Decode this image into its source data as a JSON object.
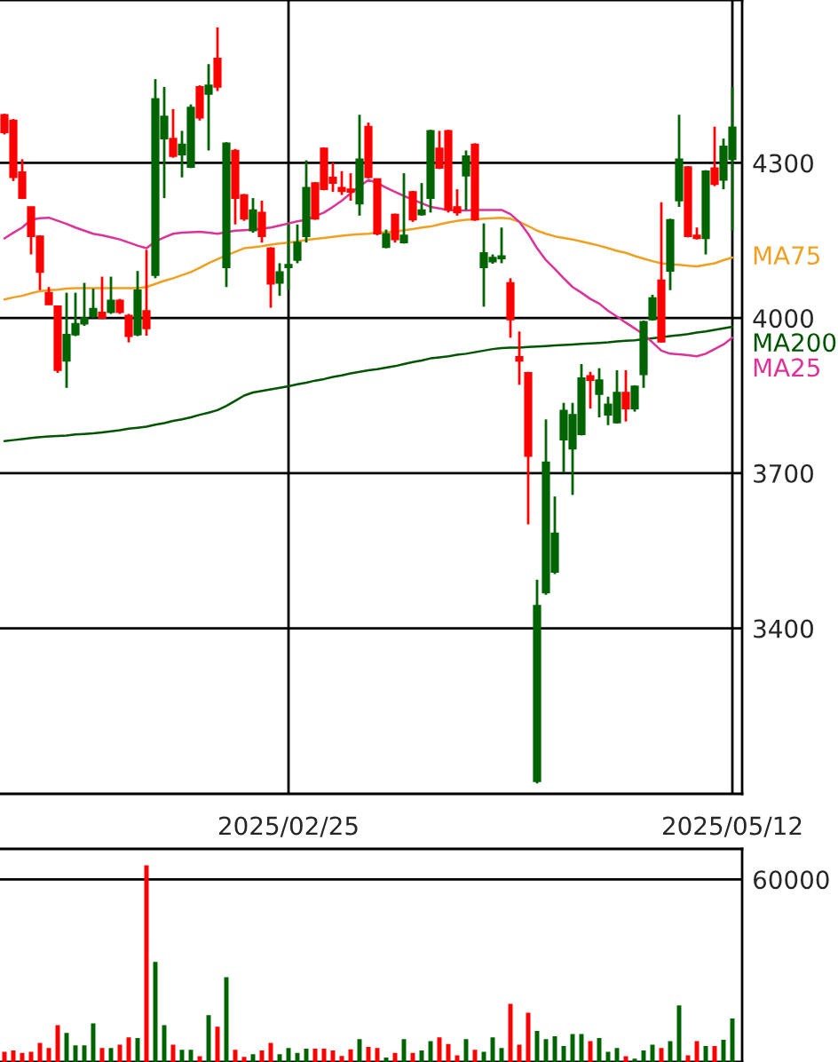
{
  "chart_data": [
    {
      "type": "candlestick",
      "categories": [
        null,
        null,
        null,
        null,
        null,
        null,
        null,
        null,
        null,
        null,
        null,
        null,
        null,
        null,
        null,
        null,
        null,
        null,
        null,
        null,
        null,
        null,
        null,
        null,
        null,
        null,
        null,
        null,
        null,
        null,
        null,
        null,
        "2025/02/25",
        null,
        null,
        null,
        null,
        null,
        null,
        null,
        null,
        null,
        null,
        null,
        null,
        null,
        null,
        null,
        null,
        null,
        null,
        null,
        null,
        null,
        null,
        null,
        null,
        null,
        null,
        null,
        null,
        null,
        null,
        null,
        null,
        null,
        null,
        null,
        null,
        null,
        null,
        null,
        null,
        null,
        null,
        null,
        null,
        null,
        null,
        null,
        null,
        null,
        "2025/05/12"
      ],
      "ohlc": [
        [
          4359,
          4395,
          4355,
          4393
        ],
        [
          4272,
          4385,
          4265,
          4382
        ],
        [
          4232,
          4307,
          4230,
          4282
        ],
        [
          4158,
          4215,
          4123,
          4215
        ],
        [
          4089,
          4160,
          4054,
          4158
        ],
        [
          4026,
          4060,
          4026,
          4049
        ],
        [
          3899,
          4023,
          3894,
          4023
        ],
        [
          3968,
          4049,
          3865,
          3917
        ],
        [
          3989,
          4049,
          3965,
          3968
        ],
        [
          4000,
          4068,
          3985,
          3989
        ],
        [
          4018,
          4057,
          4000,
          4003
        ],
        [
          4000,
          4080,
          3998,
          4011
        ],
        [
          4034,
          4080,
          4008,
          4011
        ],
        [
          4011,
          4037,
          4008,
          4034
        ],
        [
          3965,
          4008,
          3953,
          4005
        ],
        [
          4054,
          4091,
          3965,
          3968
        ],
        [
          3980,
          4132,
          3966,
          4014
        ],
        [
          4424,
          4462,
          4077,
          4083
        ],
        [
          4390,
          4447,
          4232,
          4347
        ],
        [
          4313,
          4404,
          4310,
          4347
        ],
        [
          4336,
          4362,
          4272,
          4316
        ],
        [
          4407,
          4413,
          4290,
          4292
        ],
        [
          4387,
          4450,
          4382,
          4447
        ],
        [
          4450,
          4491,
          4324,
          4433
        ],
        [
          4447,
          4562,
          4439,
          4502
        ],
        [
          4338,
          4340,
          4060,
          4098
        ],
        [
          4232,
          4327,
          4181,
          4324
        ],
        [
          4192,
          4240,
          4188,
          4238
        ],
        [
          4209,
          4232,
          4165,
          4169
        ],
        [
          4158,
          4227,
          4146,
          4204
        ],
        [
          4066,
          4137,
          4020,
          4135
        ],
        [
          4089,
          4106,
          4043,
          4068
        ],
        [
          4103,
          4181,
          4054,
          4098
        ],
        [
          4146,
          4181,
          4106,
          4112
        ],
        [
          4252,
          4305,
          4146,
          4158
        ],
        [
          4192,
          4263,
          4190,
          4261
        ],
        [
          4249,
          4330,
          4247,
          4328
        ],
        [
          4261,
          4301,
          4244,
          4272
        ],
        [
          4245,
          4284,
          4238,
          4252
        ],
        [
          4244,
          4280,
          4227,
          4249
        ],
        [
          4307,
          4393,
          4198,
          4221
        ],
        [
          4272,
          4378,
          4270,
          4370
        ],
        [
          4163,
          4270,
          4160,
          4269
        ],
        [
          4163,
          4171,
          4135,
          4137
        ],
        [
          4152,
          4202,
          4146,
          4200
        ],
        [
          4160,
          4280,
          4144,
          4146
        ],
        [
          4190,
          4246,
          4186,
          4244
        ],
        [
          4209,
          4261,
          4198,
          4200
        ],
        [
          4362,
          4364,
          4204,
          4232
        ],
        [
          4290,
          4362,
          4288,
          4328
        ],
        [
          4209,
          4364,
          4204,
          4362
        ],
        [
          4204,
          4249,
          4198,
          4215
        ],
        [
          4313,
          4324,
          4209,
          4275
        ],
        [
          4190,
          4338,
          4188,
          4336
        ],
        [
          4126,
          4183,
          4022,
          4098
        ],
        [
          4117,
          4123,
          4105,
          4109
        ],
        [
          4120,
          4175,
          4106,
          4115
        ],
        [
          3997,
          4077,
          3962,
          4068
        ],
        [
          3917,
          3974,
          3871,
          3925
        ],
        [
          3733,
          3896,
          3601,
          3894
        ],
        [
          3444,
          3494,
          3100,
          3104
        ],
        [
          3721,
          3804,
          3465,
          3469
        ],
        [
          3584,
          3655,
          3505,
          3509
        ],
        [
          3821,
          3836,
          3701,
          3765
        ],
        [
          3813,
          3836,
          3658,
          3747
        ],
        [
          3884,
          3911,
          3773,
          3775
        ],
        [
          3880,
          3896,
          3825,
          3888
        ],
        [
          3880,
          3903,
          3808,
          3853
        ],
        [
          3833,
          3848,
          3793,
          3813
        ],
        [
          3856,
          3899,
          3796,
          3798
        ],
        [
          3825,
          3899,
          3800,
          3856
        ],
        [
          3868,
          3870,
          3819,
          3825
        ],
        [
          3993,
          3995,
          3865,
          3891
        ],
        [
          4039,
          4045,
          3995,
          3997
        ],
        [
          3954,
          4224,
          3953,
          4073
        ],
        [
          4190,
          4192,
          4054,
          4091
        ],
        [
          4307,
          4393,
          4215,
          4227
        ],
        [
          4158,
          4294,
          4156,
          4292
        ],
        [
          4154,
          4175,
          4152,
          4160
        ],
        [
          4284,
          4286,
          4123,
          4154
        ],
        [
          4259,
          4370,
          4255,
          4290
        ],
        [
          4332,
          4347,
          4249,
          4267
        ],
        [
          4369,
          4447,
          4169,
          4307
        ]
      ],
      "colors": [
        "#ff0000",
        "#ff0000",
        "#ff0000",
        "#ff0000",
        "#ff0000",
        "#ff0000",
        "#ff0000",
        "#006400",
        "#006400",
        "#006400",
        "#006400",
        "#ff0000",
        "#006400",
        "#ff0000",
        "#ff0000",
        "#006400",
        "#ff0000",
        "#006400",
        "#006400",
        "#ff0000",
        "#006400",
        "#006400",
        "#ff0000",
        "#006400",
        "#ff0000",
        "#006400",
        "#ff0000",
        "#ff0000",
        "#006400",
        "#ff0000",
        "#ff0000",
        "#006400",
        "#006400",
        "#006400",
        "#006400",
        "#ff0000",
        "#ff0000",
        "#ff0000",
        "#ff0000",
        "#ff0000",
        "#006400",
        "#ff0000",
        "#ff0000",
        "#006400",
        "#ff0000",
        "#006400",
        "#ff0000",
        "#006400",
        "#006400",
        "#ff0000",
        "#ff0000",
        "#ff0000",
        "#006400",
        "#ff0000",
        "#006400",
        "#006400",
        "#006400",
        "#ff0000",
        "#ff0000",
        "#ff0000",
        "#006400",
        "#006400",
        "#006400",
        "#006400",
        "#006400",
        "#006400",
        "#ff0000",
        "#006400",
        "#006400",
        "#006400",
        "#ff0000",
        "#006400",
        "#006400",
        "#006400",
        "#ff0000",
        "#006400",
        "#006400",
        "#ff0000",
        "#ff0000",
        "#006400",
        "#ff0000",
        "#006400",
        "#006400"
      ],
      "series": [
        {
          "name": "MA75",
          "type": "line",
          "color": "#f0a020",
          "values": [
            4036,
            4040,
            4043,
            4048,
            4052,
            4054,
            4055,
            4057,
            4058,
            4058,
            4058,
            4058,
            4058,
            4058,
            4058,
            4058,
            4060,
            4066,
            4072,
            4077,
            4083,
            4089,
            4097,
            4106,
            4114,
            4121,
            4128,
            4135,
            4137,
            4139,
            4142,
            4144,
            4146,
            4148,
            4151,
            4153,
            4155,
            4157,
            4159,
            4161,
            4162,
            4163,
            4165,
            4166,
            4167,
            4170,
            4172,
            4175,
            4177,
            4181,
            4185,
            4188,
            4190,
            4191,
            4192,
            4193,
            4194,
            4192,
            4186,
            4178,
            4169,
            4163,
            4158,
            4155,
            4152,
            4148,
            4144,
            4140,
            4135,
            4130,
            4126,
            4120,
            4115,
            4110,
            4106,
            4104,
            4103,
            4101,
            4100,
            4103,
            4106,
            4112,
            4117
          ]
        },
        {
          "name": "MA200",
          "type": "line",
          "color": "#005500",
          "values": [
            3762,
            3764,
            3766,
            3768,
            3770,
            3771,
            3772,
            3773,
            3775,
            3776,
            3777,
            3779,
            3781,
            3783,
            3786,
            3788,
            3790,
            3794,
            3797,
            3801,
            3804,
            3808,
            3813,
            3817,
            3822,
            3830,
            3840,
            3850,
            3856,
            3859,
            3862,
            3865,
            3868,
            3872,
            3875,
            3879,
            3882,
            3886,
            3889,
            3893,
            3896,
            3899,
            3901,
            3904,
            3907,
            3911,
            3915,
            3918,
            3922,
            3924,
            3926,
            3929,
            3931,
            3934,
            3937,
            3940,
            3942,
            3943,
            3943,
            3944,
            3945,
            3946,
            3947,
            3948,
            3949,
            3950,
            3951,
            3952,
            3953,
            3955,
            3956,
            3957,
            3959,
            3961,
            3963,
            3965,
            3967,
            3969,
            3972,
            3974,
            3977,
            3980,
            3983
          ]
        },
        {
          "name": "MA25",
          "type": "line",
          "color": "#dd3399",
          "values": [
            4154,
            4165,
            4175,
            4190,
            4193,
            4194,
            4188,
            4182,
            4175,
            4169,
            4163,
            4160,
            4156,
            4152,
            4146,
            4140,
            4135,
            4148,
            4156,
            4163,
            4165,
            4166,
            4167,
            4165,
            4163,
            4166,
            4169,
            4170,
            4171,
            4173,
            4175,
            4179,
            4183,
            4187,
            4190,
            4197,
            4204,
            4215,
            4227,
            4241,
            4255,
            4267,
            4261,
            4252,
            4244,
            4236,
            4229,
            4222,
            4215,
            4212,
            4209,
            4208,
            4208,
            4209,
            4209,
            4209,
            4209,
            4201,
            4186,
            4163,
            4135,
            4112,
            4095,
            4077,
            4060,
            4049,
            4037,
            4028,
            4014,
            4003,
            3991,
            3980,
            3968,
            3953,
            3937,
            3931,
            3930,
            3928,
            3926,
            3931,
            3940,
            3949,
            3962
          ]
        }
      ],
      "ylim": [
        3080,
        4615
      ],
      "yticks": [
        3400,
        3700,
        4000,
        4300
      ],
      "grid": true
    },
    {
      "type": "bar",
      "categories": [
        null,
        null,
        null,
        null,
        null,
        null,
        null,
        null,
        null,
        null,
        null,
        null,
        null,
        null,
        null,
        null,
        null,
        null,
        null,
        null,
        null,
        null,
        null,
        null,
        null,
        null,
        null,
        null,
        null,
        null,
        null,
        null,
        null,
        null,
        null,
        null,
        null,
        null,
        null,
        null,
        null,
        null,
        null,
        null,
        null,
        null,
        null,
        null,
        null,
        null,
        null,
        null,
        null,
        null,
        null,
        null,
        null,
        null,
        null,
        null,
        null,
        null,
        null,
        null,
        null,
        null,
        null,
        null,
        null,
        null,
        null,
        null,
        null,
        null,
        null,
        null,
        null,
        null,
        null,
        null,
        null,
        null,
        null
      ],
      "values": [
        3100,
        3500,
        2700,
        3100,
        6000,
        4300,
        11800,
        9300,
        5200,
        5200,
        12400,
        4300,
        4300,
        5400,
        7800,
        7600,
        64300,
        32600,
        11800,
        5400,
        3700,
        3700,
        1600,
        15100,
        11300,
        27600,
        3700,
        1400,
        2300,
        3500,
        6000,
        2300,
        4300,
        2700,
        4100,
        4100,
        4100,
        3500,
        1700,
        3900,
        7200,
        4700,
        4300,
        1200,
        2700,
        7200,
        2700,
        3500,
        6600,
        7800,
        5600,
        1900,
        7200,
        3700,
        3100,
        7800,
        4300,
        18800,
        5400,
        15900,
        9900,
        7200,
        8200,
        5000,
        8900,
        8900,
        6600,
        7600,
        3100,
        4300,
        1600,
        800,
        3500,
        5400,
        4300,
        6600,
        18300,
        1900,
        6600,
        5000,
        5000,
        7000,
        14000
      ],
      "colors": [
        "#ff0000",
        "#ff0000",
        "#ff0000",
        "#ff0000",
        "#ff0000",
        "#ff0000",
        "#ff0000",
        "#006400",
        "#006400",
        "#006400",
        "#006400",
        "#ff0000",
        "#006400",
        "#ff0000",
        "#ff0000",
        "#006400",
        "#ff0000",
        "#006400",
        "#006400",
        "#ff0000",
        "#006400",
        "#006400",
        "#ff0000",
        "#006400",
        "#ff0000",
        "#006400",
        "#ff0000",
        "#ff0000",
        "#006400",
        "#ff0000",
        "#ff0000",
        "#006400",
        "#006400",
        "#006400",
        "#006400",
        "#ff0000",
        "#ff0000",
        "#ff0000",
        "#ff0000",
        "#ff0000",
        "#006400",
        "#ff0000",
        "#ff0000",
        "#006400",
        "#ff0000",
        "#006400",
        "#ff0000",
        "#006400",
        "#006400",
        "#ff0000",
        "#ff0000",
        "#ff0000",
        "#006400",
        "#ff0000",
        "#006400",
        "#006400",
        "#006400",
        "#ff0000",
        "#ff0000",
        "#ff0000",
        "#006400",
        "#006400",
        "#006400",
        "#006400",
        "#006400",
        "#006400",
        "#ff0000",
        "#006400",
        "#006400",
        "#006400",
        "#ff0000",
        "#006400",
        "#006400",
        "#006400",
        "#ff0000",
        "#006400",
        "#006400",
        "#ff0000",
        "#ff0000",
        "#006400",
        "#ff0000",
        "#006400",
        "#006400"
      ],
      "ylim": [
        0,
        70000
      ],
      "yticks": [
        60000
      ],
      "grid": "y",
      "tick_labels": "y"
    }
  ]
}
